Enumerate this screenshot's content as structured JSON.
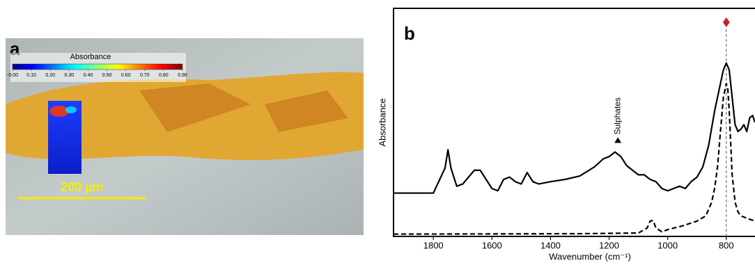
{
  "panel_a": {
    "label": "a",
    "colorbar": {
      "title": "Absorbance",
      "range": [
        0,
        0.9
      ],
      "ticks": [
        {
          "value": 0,
          "label": "-0.00"
        },
        {
          "value": 0.1,
          "label": "0.10"
        },
        {
          "value": 0.2,
          "label": "0.20"
        },
        {
          "value": 0.3,
          "label": "0.30"
        },
        {
          "value": 0.4,
          "label": "0.40"
        },
        {
          "value": 0.5,
          "label": "0.50"
        },
        {
          "value": 0.6,
          "label": "0.60"
        },
        {
          "value": 0.7,
          "label": "0.70"
        },
        {
          "value": 0.8,
          "label": "0.80"
        },
        {
          "value": 0.9,
          "label": "0.90"
        }
      ]
    },
    "scale_bar": "200 µm"
  },
  "chart_data": {
    "type": "line",
    "panel_label": "b",
    "x_label": "Wavenumber (cm⁻¹)",
    "y_label": "Absorbance",
    "xlim": [
      1936,
      702
    ],
    "xticks": [
      1800,
      1600,
      1400,
      1200,
      1000,
      800
    ],
    "ylim": [
      0,
      100
    ],
    "series": [
      {
        "color": "#000000",
        "dash": "solid",
        "x": [
          1936,
          1800,
          1760,
          1750,
          1740,
          1720,
          1700,
          1660,
          1640,
          1620,
          1600,
          1580,
          1560,
          1540,
          1520,
          1500,
          1480,
          1460,
          1440,
          1400,
          1350,
          1300,
          1250,
          1220,
          1200,
          1180,
          1160,
          1140,
          1120,
          1100,
          1080,
          1060,
          1040,
          1020,
          1000,
          980,
          960,
          940,
          920,
          900,
          880,
          860,
          840,
          820,
          810,
          800,
          790,
          780,
          770,
          760,
          750,
          740,
          730,
          720,
          710,
          702
        ],
        "values": [
          19,
          19,
          30,
          38,
          30,
          22,
          23,
          29,
          29,
          25,
          21,
          20,
          25,
          26,
          24,
          23,
          28,
          24,
          23,
          24,
          25,
          26.5,
          30.5,
          34,
          35,
          37,
          35,
          31,
          29,
          27,
          27,
          25,
          24,
          21,
          20,
          21,
          22,
          21,
          24,
          26,
          30.5,
          40,
          55,
          67,
          73,
          76,
          73,
          61,
          49,
          46,
          47,
          49,
          46,
          52,
          53,
          50
        ]
      },
      {
        "color": "#000000",
        "dash": "dashed",
        "x": [
          1936,
          1300,
          1100,
          1070,
          1060,
          1050,
          1040,
          1020,
          1000,
          950,
          900,
          870,
          850,
          840,
          830,
          820,
          810,
          800,
          795,
          790,
          780,
          770,
          760,
          750,
          730,
          702
        ],
        "values": [
          1,
          1.2,
          1.5,
          3.7,
          6.7,
          7,
          3.7,
          2,
          3,
          4.6,
          6.7,
          9,
          15,
          21,
          30.5,
          46,
          61,
          67,
          65,
          55,
          27,
          15,
          10.7,
          9,
          8,
          6.7
        ]
      }
    ],
    "annotation": {
      "text": "Sulphates",
      "x": 1170,
      "y": 41
    },
    "reference_line": {
      "x": 800,
      "color": "#c0272d"
    }
  }
}
